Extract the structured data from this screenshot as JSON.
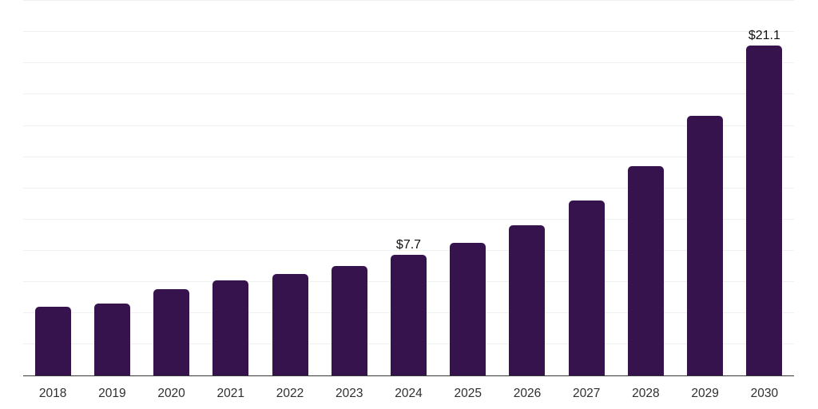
{
  "chart_data": {
    "type": "bar",
    "title": "",
    "xlabel": "",
    "ylabel": "",
    "categories": [
      "2018",
      "2019",
      "2020",
      "2021",
      "2022",
      "2023",
      "2024",
      "2025",
      "2026",
      "2027",
      "2028",
      "2029",
      "2030"
    ],
    "values": [
      4.4,
      4.6,
      5.5,
      6.1,
      6.5,
      7.0,
      7.7,
      8.5,
      9.6,
      11.2,
      13.4,
      16.6,
      21.1
    ],
    "data_labels": {
      "2024": "$7.7",
      "2030": "$21.1"
    },
    "ylim": [
      0,
      24
    ],
    "grid_step": 2,
    "grid": "on",
    "legend": "none",
    "y_tick_labels_visible": false,
    "colors": {
      "bar": "#37134d",
      "axis_line": "#383838",
      "gridline": "#eff0f2",
      "tick_label": "#2f2f2f",
      "data_label": "#101010",
      "background": "#ffffff"
    }
  }
}
